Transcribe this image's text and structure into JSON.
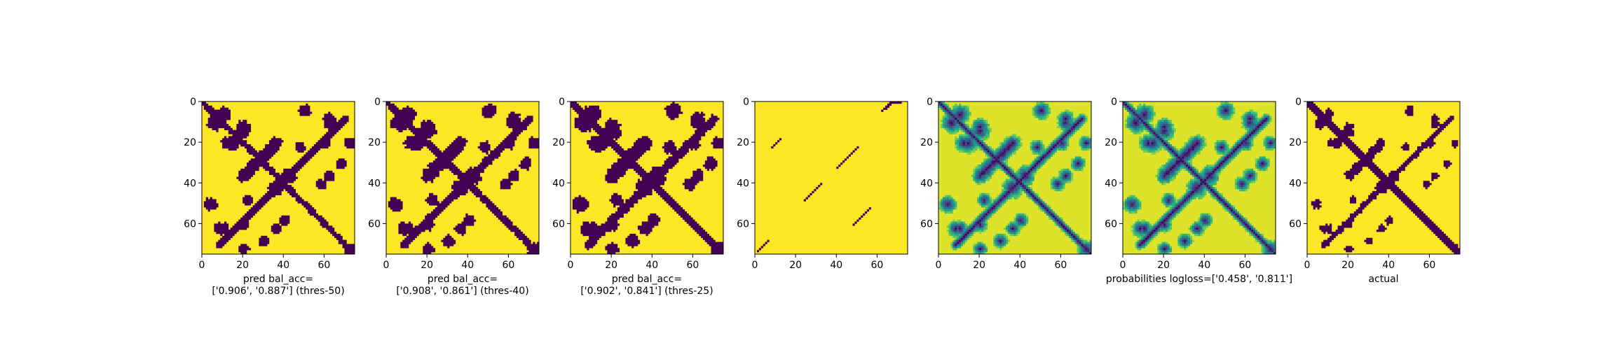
{
  "chart_data": [
    {
      "type": "heatmap",
      "title": "",
      "xlabel": "pred bal_acc=\n['0.906', '0.887'] (thres-50)",
      "ylabel": "",
      "xlim": [
        0,
        75
      ],
      "ylim": [
        75,
        0
      ],
      "xticks": [
        "0",
        "20",
        "40",
        "60"
      ],
      "yticks": [
        "0",
        "20",
        "40",
        "60"
      ],
      "colormap": "viridis",
      "low_color": "#440154",
      "high_color": "#fde725",
      "content": "binary contact map (thresholded at 50)"
    },
    {
      "type": "heatmap",
      "title": "",
      "xlabel": "pred bal_acc=\n['0.908', '0.861'] (thres-40)",
      "ylabel": "",
      "xlim": [
        0,
        75
      ],
      "ylim": [
        75,
        0
      ],
      "xticks": [
        "0",
        "20",
        "40",
        "60"
      ],
      "yticks": [
        "0",
        "20",
        "40",
        "60"
      ],
      "colormap": "viridis",
      "low_color": "#440154",
      "high_color": "#fde725",
      "content": "binary contact map (thresholded at 40)"
    },
    {
      "type": "heatmap",
      "title": "",
      "xlabel": "pred bal_acc=\n['0.902', '0.841'] (thres-25)",
      "ylabel": "",
      "xlim": [
        0,
        75
      ],
      "ylim": [
        75,
        0
      ],
      "xticks": [
        "0",
        "20",
        "40",
        "60"
      ],
      "yticks": [
        "0",
        "20",
        "40",
        "60"
      ],
      "colormap": "viridis",
      "low_color": "#440154",
      "high_color": "#fde725",
      "content": "binary contact map (thresholded at 25)"
    },
    {
      "type": "heatmap",
      "title": "",
      "xlabel": "",
      "ylabel": "",
      "xlim": [
        0,
        75
      ],
      "ylim": [
        75,
        0
      ],
      "xticks": [
        "0",
        "20",
        "40",
        "60"
      ],
      "yticks": [
        "0",
        "20",
        "40",
        "60"
      ],
      "colormap": "viridis",
      "low_color": "#440154",
      "high_color": "#fde725",
      "content": "sparse dotted diagonal segments"
    },
    {
      "type": "heatmap",
      "title": "",
      "xlabel": "",
      "ylabel": "",
      "xlim": [
        0,
        75
      ],
      "ylim": [
        75,
        0
      ],
      "xticks": [
        "0",
        "20",
        "40",
        "60"
      ],
      "yticks": [
        "0",
        "20",
        "40",
        "60"
      ],
      "colormap": "viridis",
      "low_color": "#440154",
      "high_color": "#fde725",
      "content": "continuous probability map"
    },
    {
      "type": "heatmap",
      "title": "",
      "xlabel": "probabilities logloss=['0.458', '0.811']",
      "ylabel": "",
      "xlim": [
        0,
        75
      ],
      "ylim": [
        75,
        0
      ],
      "xticks": [
        "0",
        "20",
        "40",
        "60"
      ],
      "yticks": [
        "0",
        "20",
        "40",
        "60"
      ],
      "colormap": "viridis",
      "low_color": "#440154",
      "high_color": "#fde725",
      "content": "continuous probability map"
    },
    {
      "type": "heatmap",
      "title": "",
      "xlabel": "actual",
      "ylabel": "",
      "xlim": [
        0,
        75
      ],
      "ylim": [
        75,
        0
      ],
      "xticks": [
        "0",
        "20",
        "40",
        "60"
      ],
      "yticks": [
        "0",
        "20",
        "40",
        "60"
      ],
      "colormap": "viridis",
      "low_color": "#440154",
      "high_color": "#fde725",
      "content": "binary ground-truth contact map"
    }
  ]
}
